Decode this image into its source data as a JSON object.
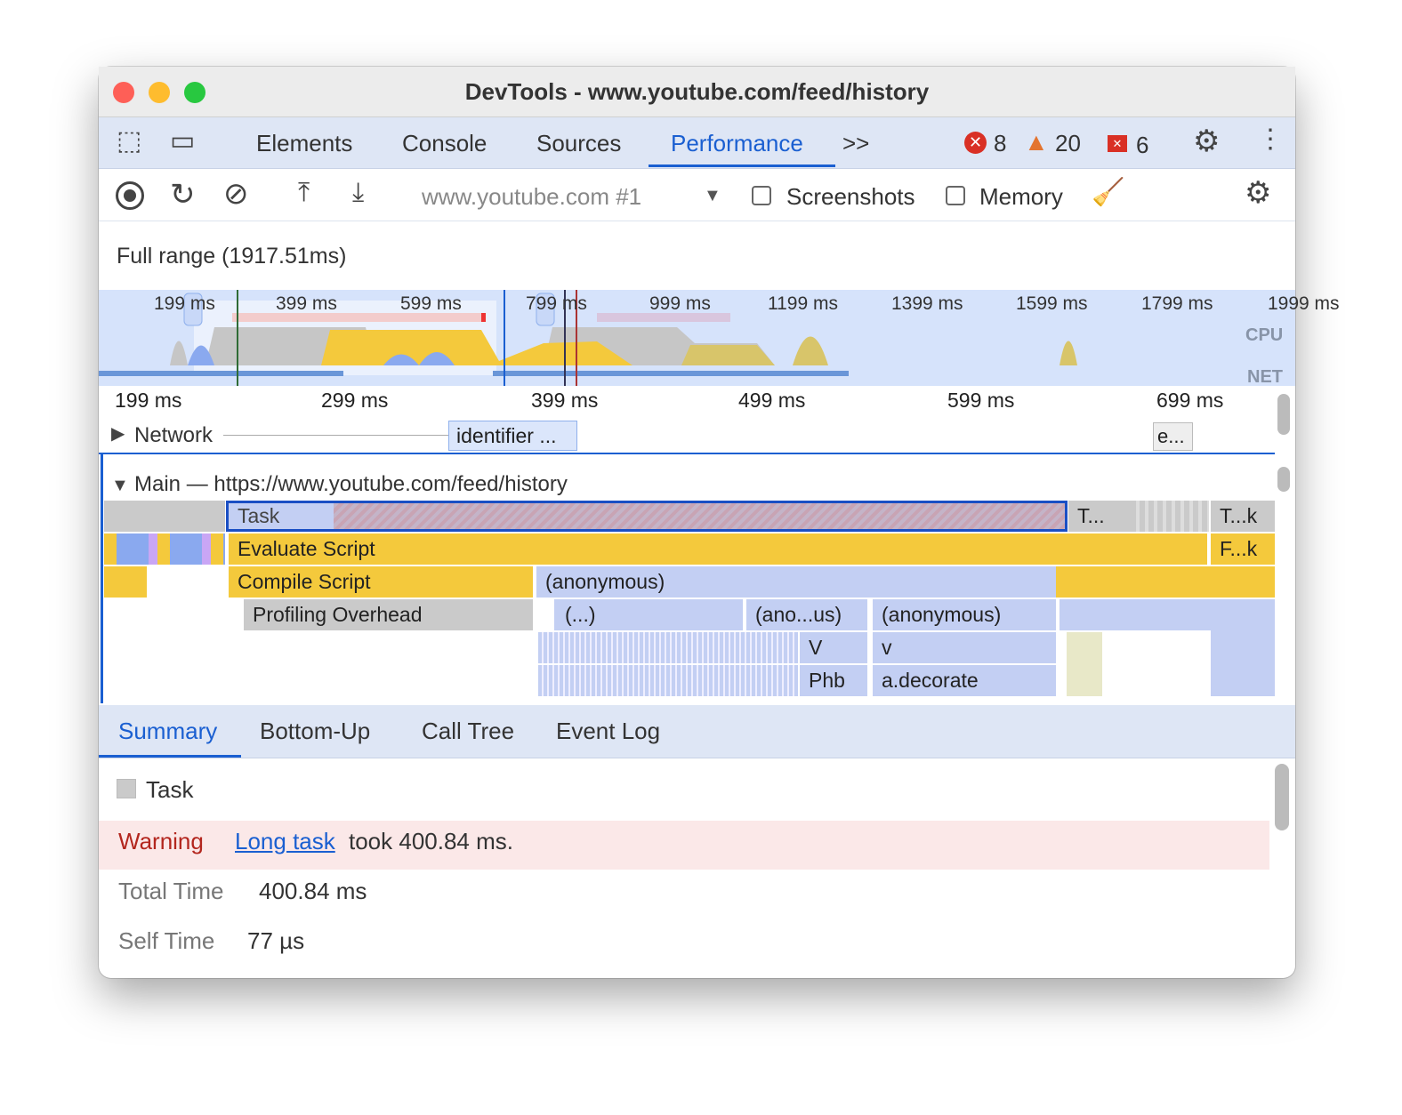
{
  "window": {
    "title": "DevTools - www.youtube.com/feed/history"
  },
  "tabs": [
    {
      "label": "Elements"
    },
    {
      "label": "Console"
    },
    {
      "label": "Sources"
    },
    {
      "label": "Performance",
      "active": true
    }
  ],
  "more_tabs": ">>",
  "status": {
    "errors": "8",
    "warnings": "20",
    "issues": "6"
  },
  "toolbar": {
    "target": "www.youtube.com #1",
    "screenshots_label": "Screenshots",
    "memory_label": "Memory",
    "screenshots_checked": false,
    "memory_checked": false
  },
  "range": {
    "label": "Full range (1917.51ms)"
  },
  "overview": {
    "ticks": [
      "199 ms",
      "399 ms",
      "599 ms",
      "799 ms",
      "999 ms",
      "1199 ms",
      "1399 ms",
      "1599 ms",
      "1799 ms",
      "1999 ms"
    ],
    "cpu_label": "CPU",
    "net_label": "NET"
  },
  "ruler": [
    "199 ms",
    "299 ms",
    "399 ms",
    "499 ms",
    "599 ms",
    "699 ms"
  ],
  "network": {
    "label": "Network",
    "items": [
      "identifier ...",
      "e..."
    ]
  },
  "main": {
    "label": "Main — https://www.youtube.com/feed/history"
  },
  "flame": {
    "task": "Task",
    "t2": "T...",
    "t3": "T...k",
    "evaluate": "Evaluate Script",
    "f": "F...k",
    "compile": "Compile Script",
    "anon": "(anonymous)",
    "profiling": "Profiling Overhead",
    "dots": "(...)",
    "anous": "(ano...us)",
    "anon2": "(anonymous)",
    "V": "V",
    "v": "v",
    "phb": "Phb",
    "decorate": "a.decorate"
  },
  "bottom_tabs": [
    {
      "label": "Summary",
      "active": true
    },
    {
      "label": "Bottom-Up"
    },
    {
      "label": "Call Tree"
    },
    {
      "label": "Event Log"
    }
  ],
  "summary": {
    "title": "Task",
    "warning_label": "Warning",
    "warning_link": "Long task",
    "warning_text": "took 400.84 ms.",
    "total_label": "Total Time",
    "total_value": "400.84 ms",
    "self_label": "Self Time",
    "self_value": "77 µs"
  },
  "colors": {
    "accent": "#1a5fd1",
    "scripting": "#f4c93c",
    "task": "#c8c8c8",
    "js": "#c3cff3",
    "warning_bg": "#fbe8e8",
    "warning_text": "#b3261e"
  }
}
